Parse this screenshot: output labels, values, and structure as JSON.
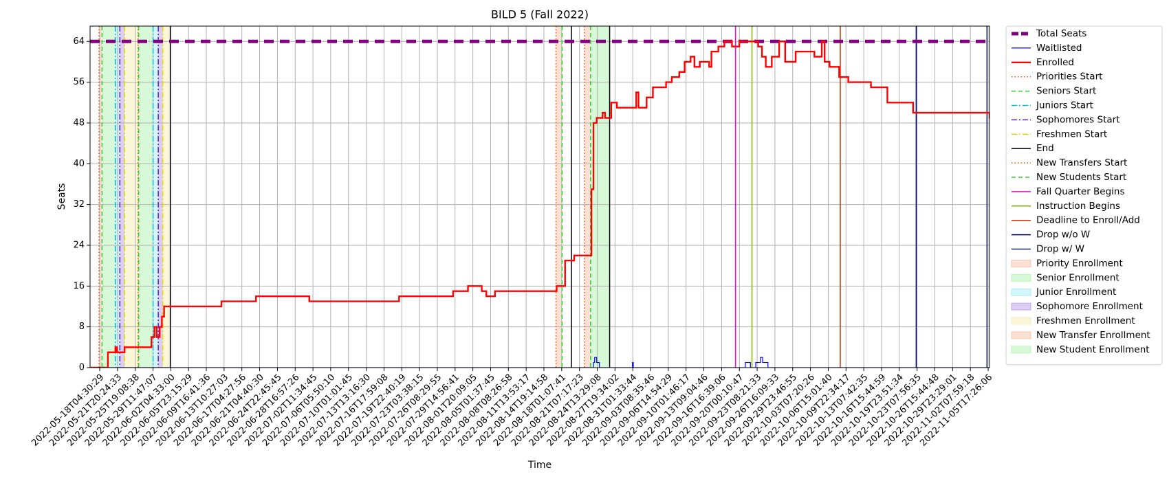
{
  "chart_data": {
    "type": "line",
    "title": "BILD 5 (Fall 2022)",
    "x_label": "Time",
    "y_label": "Seats",
    "ylim": [
      0,
      67
    ],
    "yticks": [
      0,
      8,
      16,
      24,
      32,
      40,
      48,
      56,
      64
    ],
    "xticks": [
      "2022-05-18T04:30:29",
      "2022-05-21T20:24:33",
      "2022-05-25T19:08:38",
      "2022-05-29T11:47:07",
      "2022-06-02T04:33:00",
      "2022-06-05T23:15:29",
      "2022-06-09T16:41:36",
      "2022-06-13T10:27:03",
      "2022-06-17T04:27:56",
      "2022-06-21T04:40:30",
      "2022-06-24T22:45:45",
      "2022-06-28T16:57:26",
      "2022-07-02T11:34:45",
      "2022-07-06T05:50:10",
      "2022-07-10T01:01:45",
      "2022-07-13T13:16:30",
      "2022-07-16T17:59:08",
      "2022-07-19T22:40:19",
      "2022-07-23T03:38:15",
      "2022-07-26T08:29:55",
      "2022-07-29T14:56:41",
      "2022-08-01T20:09:05",
      "2022-08-05T01:37:45",
      "2022-08-08T08:26:58",
      "2022-08-11T13:53:17",
      "2022-08-14T19:14:58",
      "2022-08-18T01:07:41",
      "2022-08-21T07:17:23",
      "2022-08-24T13:29:08",
      "2022-08-27T19:34:02",
      "2022-08-31T01:33:44",
      "2022-09-03T08:35:46",
      "2022-09-06T14:54:29",
      "2022-09-10T01:46:17",
      "2022-09-13T09:04:46",
      "2022-09-16T16:39:06",
      "2022-09-20T00:10:47",
      "2022-09-23T08:21:33",
      "2022-09-26T16:09:33",
      "2022-09-29T23:46:55",
      "2022-10-03T07:20:26",
      "2022-10-06T15:01:40",
      "2022-10-09T22:34:17",
      "2022-10-13T07:42:35",
      "2022-10-16T15:44:59",
      "2022-10-19T23:51:34",
      "2022-10-23T07:56:35",
      "2022-10-26T15:44:48",
      "2022-10-29T23:29:01",
      "2022-11-02T07:59:18",
      "2022-11-05T17:26:06"
    ],
    "grid": true,
    "legend": "outside right",
    "hlines": [
      {
        "name": "Total Seats",
        "value": 64,
        "color": "#800080",
        "style": "dashed"
      }
    ],
    "series": [
      {
        "name": "Waitlisted",
        "color": "#0000ff",
        "width": 1.2,
        "x": [
          "2022-05-16T06:00:00",
          "2022-08-23T21:00:00",
          "2022-08-24T02:00:00",
          "2022-08-24T11:00:00",
          "2022-08-24T23:00:00",
          "2022-08-31T00:00:00",
          "2022-08-31T04:00:00",
          "2022-09-21T03:00:00",
          "2022-09-22T02:00:00",
          "2022-09-23T02:00:00",
          "2022-09-23T23:00:00",
          "2022-09-24T09:00:00",
          "2022-09-25T09:00:00",
          "2022-11-07T07:00:00"
        ],
        "values": [
          0,
          1,
          2,
          1,
          0,
          1,
          0,
          1,
          0,
          1,
          2,
          1,
          0,
          0
        ]
      },
      {
        "name": "Enrolled",
        "color": "#ff0000",
        "width": 2.4,
        "x": [
          "2022-05-16T06:00:00",
          "2022-05-19T21:00:00",
          "2022-05-21T10:00:00",
          "2022-05-21T18:00:00",
          "2022-05-23T10:00:00",
          "2022-05-29T04:00:00",
          "2022-05-29T19:00:00",
          "2022-05-30T06:00:00",
          "2022-05-30T21:00:00",
          "2022-05-31T08:00:00",
          "2022-05-31T19:00:00",
          "2022-06-12T21:00:00",
          "2022-06-20T09:00:00",
          "2022-07-01T17:00:00",
          "2022-07-19T11:00:00",
          "2022-07-29T06:00:00",
          "2022-07-31T23:00:00",
          "2022-08-03T11:00:00",
          "2022-08-04T07:00:00",
          "2022-08-05T21:00:00",
          "2022-08-17T03:00:00",
          "2022-08-18T16:00:00",
          "2022-08-20T08:00:00",
          "2022-08-23T12:00:00",
          "2022-08-23T21:00:00",
          "2022-08-24T11:00:00",
          "2022-08-25T13:00:00",
          "2022-08-26T00:00:00",
          "2022-08-27T03:00:00",
          "2022-08-28T04:00:00",
          "2022-08-31T17:00:00",
          "2022-09-01T03:00:00",
          "2022-09-02T15:00:00",
          "2022-09-03T19:00:00",
          "2022-09-06T05:00:00",
          "2022-09-07T07:00:00",
          "2022-09-08T18:00:00",
          "2022-09-09T19:00:00",
          "2022-09-10T22:00:00",
          "2022-09-11T15:00:00",
          "2022-09-12T15:00:00",
          "2022-09-14T09:00:00",
          "2022-09-14T19:00:00",
          "2022-09-16T02:00:00",
          "2022-09-17T05:00:00",
          "2022-09-18T15:00:00",
          "2022-09-20T00:00:00",
          "2022-09-23T13:00:00",
          "2022-09-24T06:00:00",
          "2022-09-24T23:00:00",
          "2022-09-26T02:00:00",
          "2022-09-27T11:00:00",
          "2022-09-28T14:00:00",
          "2022-09-30T13:00:00",
          "2022-10-04T01:00:00",
          "2022-10-05T10:00:00",
          "2022-10-05T23:00:00",
          "2022-10-06T21:00:00",
          "2022-10-08T16:00:00",
          "2022-10-10T09:00:00",
          "2022-10-14T16:00:00",
          "2022-10-17T18:00:00",
          "2022-10-22T14:00:00",
          "2022-11-06T00:00:00",
          "2022-11-07T07:00:00"
        ],
        "values": [
          0,
          3,
          4,
          3,
          4,
          6,
          8,
          6,
          8,
          10,
          12,
          13,
          14,
          13,
          14,
          15,
          16,
          15,
          14,
          15,
          16,
          21,
          22,
          35,
          48,
          49,
          50,
          49,
          52,
          51,
          54,
          51,
          53,
          55,
          56,
          57,
          58,
          60,
          61,
          59,
          60,
          59,
          62,
          63,
          64,
          63,
          64,
          63,
          61,
          59,
          61,
          64,
          60,
          62,
          61,
          64,
          60,
          59,
          57,
          56,
          55,
          52,
          50,
          49,
          49
        ]
      }
    ],
    "events": [
      {
        "name": "Priorities Start",
        "color": "#ff4500",
        "style": "dotted",
        "x": [
          "2022-05-18T01:00:00",
          "2022-05-26T09:00:00"
        ]
      },
      {
        "name": "Seniors Start",
        "color": "#32cd32",
        "style": "dashed",
        "x": [
          "2022-05-18T16:00:00",
          "2022-05-26T12:00:00"
        ]
      },
      {
        "name": "Juniors Start",
        "color": "#00bcd4",
        "style": "dashdot",
        "x": [
          "2022-05-21T10:00:00",
          "2022-05-29T12:00:00"
        ]
      },
      {
        "name": "Sophomores Start",
        "color": "#5a1ee0",
        "style": "dashdot",
        "x": [
          "2022-05-22T09:00:00",
          "2022-05-30T14:00:00"
        ]
      },
      {
        "name": "Freshmen Start",
        "color": "#e0d800",
        "style": "dashdot",
        "x": [
          "2022-05-23T10:00:00",
          "2022-05-31T12:00:00"
        ]
      },
      {
        "name": "End",
        "color": "#000000",
        "style": "solid",
        "x": [
          "2022-06-02T02:00:00",
          "2022-08-19T20:00:00",
          "2022-08-26T20:00:00"
        ]
      },
      {
        "name": "New Transfers Start",
        "color": "#ff4500",
        "style": "dotted",
        "x": [
          "2022-08-17T00:00:00",
          "2022-08-22T05:00:00"
        ]
      },
      {
        "name": "New Students Start",
        "color": "#32cd32",
        "style": "dashed",
        "x": [
          "2022-08-18T03:00:00",
          "2022-08-23T08:00:00"
        ]
      },
      {
        "name": "Fall Quarter Begins",
        "color": "#ff00cc",
        "style": "solid",
        "x": [
          "2022-09-19T07:00:00"
        ]
      },
      {
        "name": "Instruction Begins",
        "color": "#7fb800",
        "style": "solid",
        "x": [
          "2022-09-22T09:00:00"
        ]
      },
      {
        "name": "Deadline to Enroll/Add",
        "color": "#cc3300",
        "style": "solid",
        "x": [
          "2022-10-08T21:00:00"
        ]
      },
      {
        "name": "Drop w/o W",
        "color": "#000080",
        "style": "solid",
        "x": [
          "2022-10-23T04:00:00"
        ]
      },
      {
        "name": "Drop w/ W",
        "color": "#1a2a5a",
        "style": "solid",
        "x": [
          "2022-11-05T12:00:00"
        ]
      }
    ],
    "spans": [
      {
        "name": "Priority Enrollment",
        "color": "#f4a582",
        "ranges": [
          [
            "2022-05-18T01:00:00",
            "2022-05-18T16:00:00"
          ],
          [
            "2022-05-26T09:00:00",
            "2022-05-26T12:00:00"
          ]
        ]
      },
      {
        "name": "Senior Enrollment",
        "color": "#90ee90",
        "ranges": [
          [
            "2022-05-18T16:00:00",
            "2022-05-21T10:00:00"
          ],
          [
            "2022-05-26T12:00:00",
            "2022-05-29T12:00:00"
          ]
        ]
      },
      {
        "name": "Junior Enrollment",
        "color": "#7fe5f0",
        "ranges": [
          [
            "2022-05-21T10:00:00",
            "2022-05-22T09:00:00"
          ],
          [
            "2022-05-29T12:00:00",
            "2022-05-30T14:00:00"
          ]
        ]
      },
      {
        "name": "Sophomore Enrollment",
        "color": "#9b6fe0",
        "ranges": [
          [
            "2022-05-22T09:00:00",
            "2022-05-23T10:00:00"
          ],
          [
            "2022-05-30T14:00:00",
            "2022-05-31T12:00:00"
          ]
        ]
      },
      {
        "name": "Freshmen Enrollment",
        "color": "#f0e68c",
        "ranges": [
          [
            "2022-05-23T10:00:00",
            "2022-05-26T09:00:00"
          ],
          [
            "2022-05-31T12:00:00",
            "2022-06-02T02:00:00"
          ]
        ]
      },
      {
        "name": "New Transfer Enrollment",
        "color": "#f4a582",
        "ranges": [
          [
            "2022-08-17T00:00:00",
            "2022-08-18T03:00:00"
          ],
          [
            "2022-08-22T05:00:00",
            "2022-08-23T08:00:00"
          ]
        ]
      },
      {
        "name": "New Student Enrollment",
        "color": "#90ee90",
        "ranges": [
          [
            "2022-08-23T08:00:00",
            "2022-08-26T20:00:00"
          ]
        ]
      }
    ]
  }
}
